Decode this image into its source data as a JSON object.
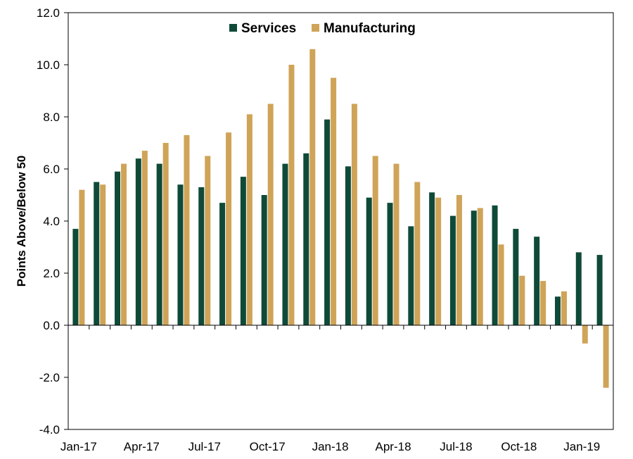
{
  "chart_data": {
    "type": "bar",
    "title": "",
    "xlabel": "",
    "ylabel": "Points Above/Below 50",
    "ylim": [
      -4.0,
      12.0
    ],
    "y_ticks": [
      "12.0",
      "10.0",
      "8.0",
      "6.0",
      "4.0",
      "2.0",
      "0.0",
      "-2.0",
      "-4.0"
    ],
    "y_tick_values": [
      12,
      10,
      8,
      6,
      4,
      2,
      0,
      -2,
      -4
    ],
    "grid": false,
    "legend_position": "top-center",
    "categories": [
      "Jan-17",
      "Feb-17",
      "Mar-17",
      "Apr-17",
      "May-17",
      "Jun-17",
      "Jul-17",
      "Aug-17",
      "Sep-17",
      "Oct-17",
      "Nov-17",
      "Dec-17",
      "Jan-18",
      "Feb-18",
      "Mar-18",
      "Apr-18",
      "May-18",
      "Jun-18",
      "Jul-18",
      "Aug-18",
      "Sep-18",
      "Oct-18",
      "Nov-18",
      "Dec-18",
      "Jan-19",
      "Feb-19"
    ],
    "x_tick_labels": [
      "Jan-17",
      "Apr-17",
      "Jul-17",
      "Oct-17",
      "Jan-18",
      "Apr-18",
      "Jul-18",
      "Oct-18",
      "Jan-19"
    ],
    "x_tick_indices": [
      0,
      3,
      6,
      9,
      12,
      15,
      18,
      21,
      24
    ],
    "series": [
      {
        "name": "Services",
        "color": "#0f4a38",
        "values": [
          3.7,
          5.5,
          5.9,
          6.4,
          6.2,
          5.4,
          5.3,
          4.7,
          5.7,
          5.0,
          6.2,
          6.6,
          7.9,
          6.1,
          4.9,
          4.7,
          3.8,
          5.1,
          4.2,
          4.4,
          4.6,
          3.7,
          3.4,
          1.1,
          2.8,
          2.7
        ]
      },
      {
        "name": "Manufacturing",
        "color": "#cfa458",
        "values": [
          5.2,
          5.4,
          6.2,
          6.7,
          7.0,
          7.3,
          6.5,
          7.4,
          8.1,
          8.5,
          10.0,
          10.6,
          9.5,
          8.5,
          6.5,
          6.2,
          5.5,
          4.9,
          5.0,
          4.5,
          3.1,
          1.9,
          1.7,
          1.3,
          -0.7,
          -2.4
        ]
      }
    ]
  }
}
